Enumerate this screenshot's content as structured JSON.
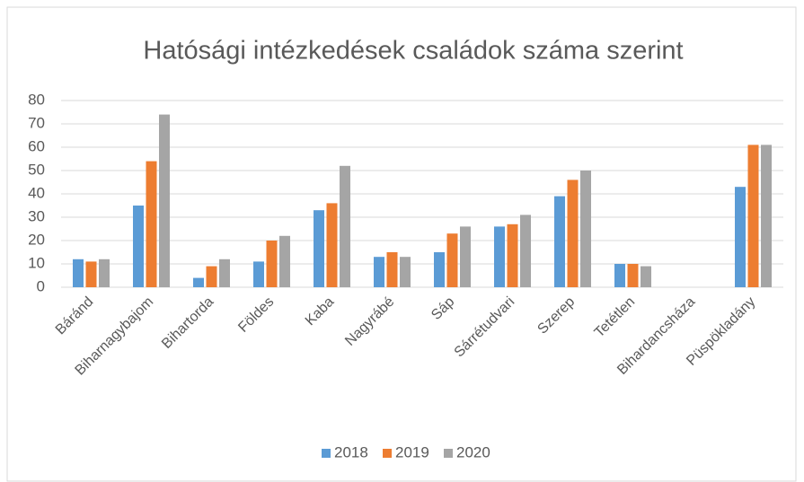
{
  "chart_data": {
    "type": "bar",
    "title": "Hatósági intézkedések családok száma szerint",
    "categories": [
      "Báránd",
      "Biharnagybajom",
      "Bihartorda",
      "Földes",
      "Kaba",
      "Nagyrábé",
      "Sáp",
      "Sárrétudvari",
      "Szerep",
      "Tetétlen",
      "Bihardancsháza",
      "Püspökladány"
    ],
    "series": [
      {
        "name": "2018",
        "color": "#5b9bd5",
        "values": [
          12,
          35,
          4,
          11,
          33,
          13,
          15,
          26,
          39,
          10,
          0,
          43
        ]
      },
      {
        "name": "2019",
        "color": "#ed7d31",
        "values": [
          11,
          54,
          9,
          20,
          36,
          15,
          23,
          27,
          46,
          10,
          0,
          61
        ]
      },
      {
        "name": "2020",
        "color": "#a5a5a5",
        "values": [
          12,
          74,
          12,
          22,
          52,
          13,
          26,
          31,
          50,
          9,
          0,
          61
        ]
      }
    ],
    "ylim": [
      0,
      80
    ],
    "yticks": [
      0,
      10,
      20,
      30,
      40,
      50,
      60,
      70,
      80
    ],
    "grid": true,
    "legend": "bottom"
  }
}
